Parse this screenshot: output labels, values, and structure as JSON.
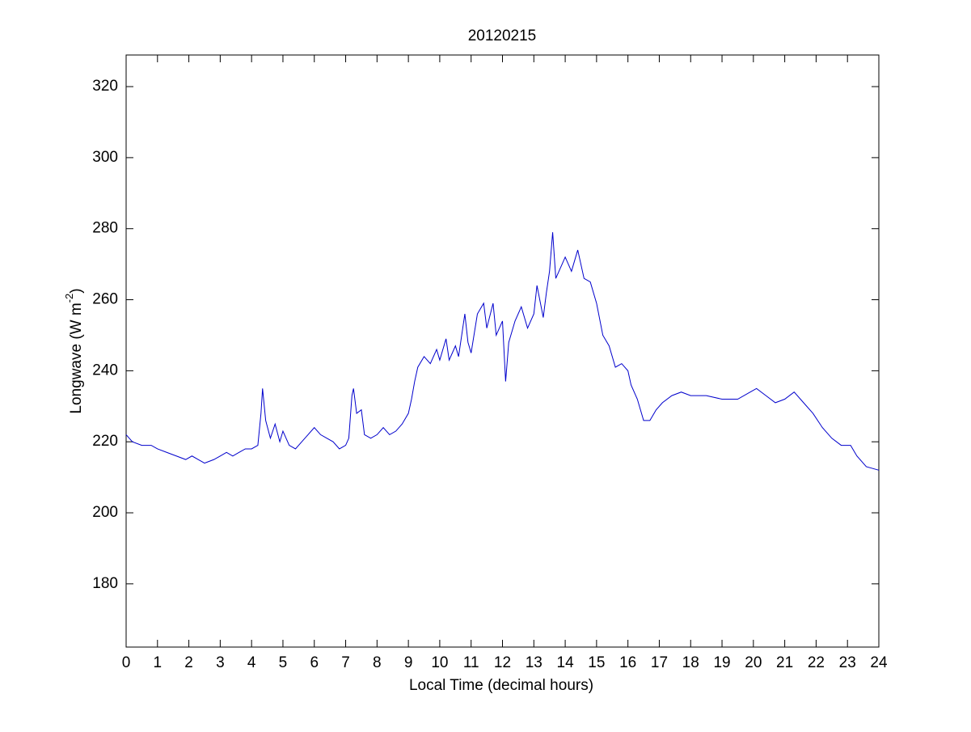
{
  "chart_data": {
    "type": "line",
    "title": "20120215",
    "x_label": "Local Time (decimal hours)",
    "y_label": {
      "text": "Longwave (W m",
      "superscript": "-2",
      "suffix": ")"
    },
    "x": [
      0,
      0.2,
      0.5,
      0.8,
      1.0,
      1.3,
      1.6,
      1.9,
      2.1,
      2.3,
      2.5,
      2.8,
      3.0,
      3.2,
      3.4,
      3.6,
      3.8,
      4.0,
      4.2,
      4.3,
      4.35,
      4.45,
      4.6,
      4.75,
      4.9,
      5.0,
      5.2,
      5.4,
      5.6,
      5.8,
      6.0,
      6.2,
      6.4,
      6.6,
      6.8,
      7.0,
      7.1,
      7.2,
      7.25,
      7.35,
      7.5,
      7.6,
      7.8,
      8.0,
      8.2,
      8.4,
      8.6,
      8.8,
      9.0,
      9.1,
      9.2,
      9.3,
      9.5,
      9.7,
      9.9,
      10.0,
      10.2,
      10.3,
      10.5,
      10.6,
      10.8,
      10.9,
      11.0,
      11.2,
      11.4,
      11.5,
      11.7,
      11.8,
      12.0,
      12.1,
      12.2,
      12.4,
      12.6,
      12.8,
      13.0,
      13.1,
      13.3,
      13.4,
      13.5,
      13.6,
      13.7,
      13.9,
      14.0,
      14.2,
      14.4,
      14.6,
      14.8,
      15.0,
      15.2,
      15.4,
      15.6,
      15.8,
      16.0,
      16.1,
      16.3,
      16.5,
      16.7,
      16.9,
      17.1,
      17.4,
      17.7,
      18.0,
      18.5,
      19.0,
      19.5,
      19.9,
      20.1,
      20.4,
      20.7,
      21.0,
      21.3,
      21.6,
      21.9,
      22.2,
      22.5,
      22.8,
      23.1,
      23.3,
      23.6,
      24.0
    ],
    "series": [
      {
        "name": "Longwave",
        "color": "#0000cc",
        "values": [
          222,
          220,
          219,
          219,
          218,
          217,
          216,
          215,
          216,
          215,
          214,
          215,
          216,
          217,
          216,
          217,
          218,
          218,
          219,
          228,
          235,
          226,
          221,
          225,
          220,
          223,
          219,
          218,
          220,
          222,
          224,
          222,
          221,
          220,
          218,
          219,
          221,
          233,
          235,
          228,
          229,
          222,
          221,
          222,
          224,
          222,
          223,
          225,
          228,
          232,
          237,
          241,
          244,
          242,
          246,
          243,
          249,
          243,
          247,
          244,
          256,
          248,
          245,
          256,
          259,
          252,
          259,
          250,
          254,
          237,
          248,
          254,
          258,
          252,
          256,
          264,
          255,
          262,
          268,
          279,
          266,
          270,
          272,
          268,
          274,
          266,
          265,
          259,
          250,
          247,
          241,
          242,
          240,
          236,
          232,
          226,
          226,
          229,
          231,
          233,
          234,
          233,
          233,
          232,
          232,
          234,
          235,
          233,
          231,
          232,
          234,
          231,
          228,
          224,
          221,
          219,
          219,
          216,
          213,
          212
        ]
      }
    ],
    "xlim": [
      0,
      24
    ],
    "ylim": [
      162.2,
      328.9
    ],
    "xticks": [
      0,
      1,
      2,
      3,
      4,
      5,
      6,
      7,
      8,
      9,
      10,
      11,
      12,
      13,
      14,
      15,
      16,
      17,
      18,
      19,
      20,
      21,
      22,
      23,
      24
    ],
    "yticks": [
      180,
      200,
      220,
      240,
      260,
      280,
      300,
      320
    ],
    "grid": false
  }
}
